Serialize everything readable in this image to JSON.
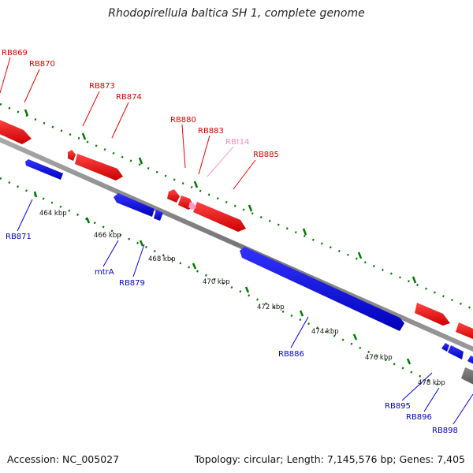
{
  "title": "Rhodopirellula baltica SH 1, complete genome",
  "footer": {
    "accession": "Accession: NC_005027",
    "summary": "Topology: circular; Length: 7,145,576 bp; Genes: 7,405"
  },
  "colors": {
    "forward": "#ff0000",
    "reverse": "#0000ff",
    "rna": "#ff99cc",
    "backbone": "#888888",
    "tick": "#007700",
    "other": "#777777"
  },
  "ruler": [
    "464 kbp",
    "466 kbp",
    "468 kbp",
    "470 kbp",
    "472 kbp",
    "474 kbp",
    "476 kbp",
    "478 kbp"
  ],
  "gene_labels": {
    "forward": [
      "RB869",
      "RB870",
      "RB873",
      "RB874",
      "RB880",
      "RB883",
      "RB885"
    ],
    "rna": [
      "RBt14"
    ],
    "reverse": [
      "RB871",
      "mtrA",
      "RB879",
      "RB886",
      "RB895",
      "RB896",
      "RB898"
    ]
  }
}
